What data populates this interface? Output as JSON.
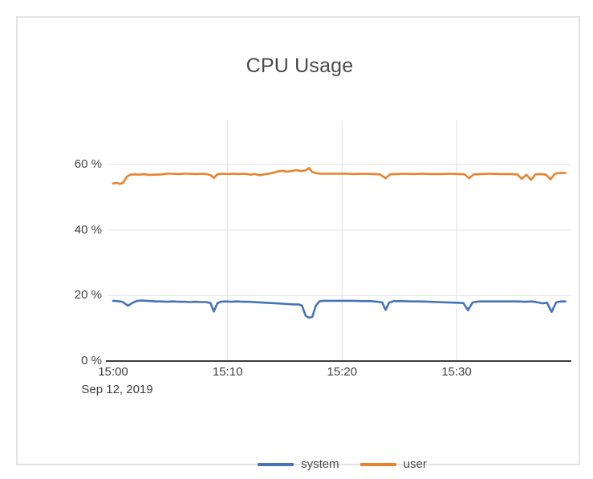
{
  "window": {
    "background": "#ffffff",
    "card_border": "#e4e4e4"
  },
  "chart_data": {
    "type": "line",
    "title": "CPU Usage",
    "grid": true,
    "legend_position": "bottom",
    "x_axis": {
      "date": "Sep 12, 2019",
      "unit": "time",
      "ticks": [
        {
          "label": "15:00",
          "minute": 0
        },
        {
          "label": "15:10",
          "minute": 10
        },
        {
          "label": "15:20",
          "minute": 20
        },
        {
          "label": "15:30",
          "minute": 30
        }
      ],
      "minutes_span": [
        0,
        39.5
      ]
    },
    "y_axis": {
      "unit": "%",
      "range": [
        0,
        73.5
      ],
      "ticks": [
        {
          "label": "0 %",
          "value": 0
        },
        {
          "label": "20 %",
          "value": 20
        },
        {
          "label": "40 %",
          "value": 40
        },
        {
          "label": "60 %",
          "value": 60
        }
      ],
      "axis_color": "#3d3d3d",
      "grid_color": "#e7e7e7"
    },
    "series": [
      {
        "name": "system",
        "color": "#4674b8",
        "points": [
          [
            0,
            18.4
          ],
          [
            0.4,
            18.3
          ],
          [
            0.8,
            18.1
          ],
          [
            1.3,
            16.9
          ],
          [
            1.7,
            17.8
          ],
          [
            2.1,
            18.4
          ],
          [
            2.5,
            18.5
          ],
          [
            2.9,
            18.4
          ],
          [
            3.3,
            18.3
          ],
          [
            3.7,
            18.2
          ],
          [
            4.2,
            18.2
          ],
          [
            4.7,
            18.1
          ],
          [
            5.2,
            18.2
          ],
          [
            5.7,
            18.1
          ],
          [
            6.2,
            18.1
          ],
          [
            6.7,
            18.0
          ],
          [
            7.2,
            18.1
          ],
          [
            7.7,
            18.0
          ],
          [
            8.1,
            18.0
          ],
          [
            8.5,
            17.7
          ],
          [
            8.8,
            15.1
          ],
          [
            9.1,
            17.6
          ],
          [
            9.4,
            18.1
          ],
          [
            9.8,
            18.2
          ],
          [
            10.3,
            18.1
          ],
          [
            10.8,
            18.2
          ],
          [
            11.3,
            18.1
          ],
          [
            11.8,
            18.1
          ],
          [
            12.3,
            18.0
          ],
          [
            12.8,
            17.9
          ],
          [
            13.3,
            17.8
          ],
          [
            13.8,
            17.7
          ],
          [
            14.3,
            17.6
          ],
          [
            14.8,
            17.5
          ],
          [
            15.3,
            17.4
          ],
          [
            15.8,
            17.3
          ],
          [
            16.2,
            17.3
          ],
          [
            16.5,
            16.9
          ],
          [
            16.8,
            13.9
          ],
          [
            17.1,
            13.2
          ],
          [
            17.4,
            13.5
          ],
          [
            17.7,
            16.8
          ],
          [
            18.0,
            18.2
          ],
          [
            18.4,
            18.4
          ],
          [
            18.9,
            18.4
          ],
          [
            19.5,
            18.4
          ],
          [
            20.2,
            18.4
          ],
          [
            21.0,
            18.4
          ],
          [
            21.8,
            18.3
          ],
          [
            22.5,
            18.3
          ],
          [
            23.1,
            18.1
          ],
          [
            23.5,
            17.9
          ],
          [
            23.8,
            15.6
          ],
          [
            24.1,
            17.8
          ],
          [
            24.5,
            18.3
          ],
          [
            25.2,
            18.3
          ],
          [
            26.0,
            18.2
          ],
          [
            26.8,
            18.2
          ],
          [
            27.6,
            18.1
          ],
          [
            28.4,
            18.0
          ],
          [
            29.2,
            17.9
          ],
          [
            30.0,
            17.8
          ],
          [
            30.6,
            17.7
          ],
          [
            31.0,
            15.5
          ],
          [
            31.4,
            17.9
          ],
          [
            32.0,
            18.2
          ],
          [
            32.8,
            18.2
          ],
          [
            33.6,
            18.2
          ],
          [
            34.4,
            18.2
          ],
          [
            35.2,
            18.2
          ],
          [
            36.0,
            18.1
          ],
          [
            36.6,
            18.2
          ],
          [
            37.1,
            17.9
          ],
          [
            37.5,
            17.6
          ],
          [
            37.9,
            17.8
          ],
          [
            38.3,
            15.0
          ],
          [
            38.7,
            17.9
          ],
          [
            39.1,
            18.2
          ],
          [
            39.5,
            18.2
          ]
        ]
      },
      {
        "name": "user",
        "color": "#e8832e",
        "points": [
          [
            0,
            54.2
          ],
          [
            0.3,
            54.4
          ],
          [
            0.6,
            54.1
          ],
          [
            0.9,
            54.5
          ],
          [
            1.2,
            56.3
          ],
          [
            1.5,
            56.9
          ],
          [
            1.9,
            57.0
          ],
          [
            2.3,
            56.9
          ],
          [
            2.7,
            57.1
          ],
          [
            3.1,
            56.8
          ],
          [
            3.5,
            56.9
          ],
          [
            3.9,
            56.9
          ],
          [
            4.3,
            57.0
          ],
          [
            4.7,
            57.2
          ],
          [
            5.2,
            57.2
          ],
          [
            5.7,
            57.1
          ],
          [
            6.2,
            57.2
          ],
          [
            6.7,
            57.2
          ],
          [
            7.2,
            57.1
          ],
          [
            7.7,
            57.2
          ],
          [
            8.1,
            57.1
          ],
          [
            8.5,
            56.8
          ],
          [
            8.8,
            55.9
          ],
          [
            9.1,
            57.0
          ],
          [
            9.5,
            57.2
          ],
          [
            10.0,
            57.1
          ],
          [
            10.5,
            57.2
          ],
          [
            11.0,
            57.1
          ],
          [
            11.5,
            57.2
          ],
          [
            12.0,
            56.9
          ],
          [
            12.4,
            57.1
          ],
          [
            12.8,
            56.7
          ],
          [
            13.2,
            57.0
          ],
          [
            13.6,
            57.2
          ],
          [
            14.0,
            57.5
          ],
          [
            14.4,
            57.9
          ],
          [
            14.8,
            58.1
          ],
          [
            15.2,
            57.8
          ],
          [
            15.6,
            58.0
          ],
          [
            16.0,
            58.3
          ],
          [
            16.4,
            58.0
          ],
          [
            16.8,
            58.2
          ],
          [
            17.1,
            58.9
          ],
          [
            17.4,
            57.7
          ],
          [
            17.8,
            57.3
          ],
          [
            18.2,
            57.2
          ],
          [
            18.8,
            57.2
          ],
          [
            19.5,
            57.2
          ],
          [
            20.3,
            57.2
          ],
          [
            21.1,
            57.1
          ],
          [
            21.9,
            57.2
          ],
          [
            22.7,
            57.1
          ],
          [
            23.3,
            57.0
          ],
          [
            23.8,
            55.8
          ],
          [
            24.2,
            57.0
          ],
          [
            24.7,
            57.1
          ],
          [
            25.4,
            57.2
          ],
          [
            26.2,
            57.1
          ],
          [
            27.0,
            57.2
          ],
          [
            27.8,
            57.1
          ],
          [
            28.6,
            57.1
          ],
          [
            29.4,
            57.2
          ],
          [
            30.2,
            57.1
          ],
          [
            30.7,
            57.0
          ],
          [
            31.1,
            55.8
          ],
          [
            31.5,
            57.0
          ],
          [
            32.2,
            57.1
          ],
          [
            33.0,
            57.2
          ],
          [
            33.8,
            57.1
          ],
          [
            34.6,
            57.1
          ],
          [
            35.3,
            57.0
          ],
          [
            35.7,
            55.6
          ],
          [
            36.1,
            56.9
          ],
          [
            36.5,
            55.3
          ],
          [
            36.9,
            57.0
          ],
          [
            37.4,
            57.1
          ],
          [
            37.8,
            56.9
          ],
          [
            38.2,
            55.5
          ],
          [
            38.6,
            57.2
          ],
          [
            39.0,
            57.4
          ],
          [
            39.5,
            57.4
          ]
        ]
      }
    ]
  }
}
